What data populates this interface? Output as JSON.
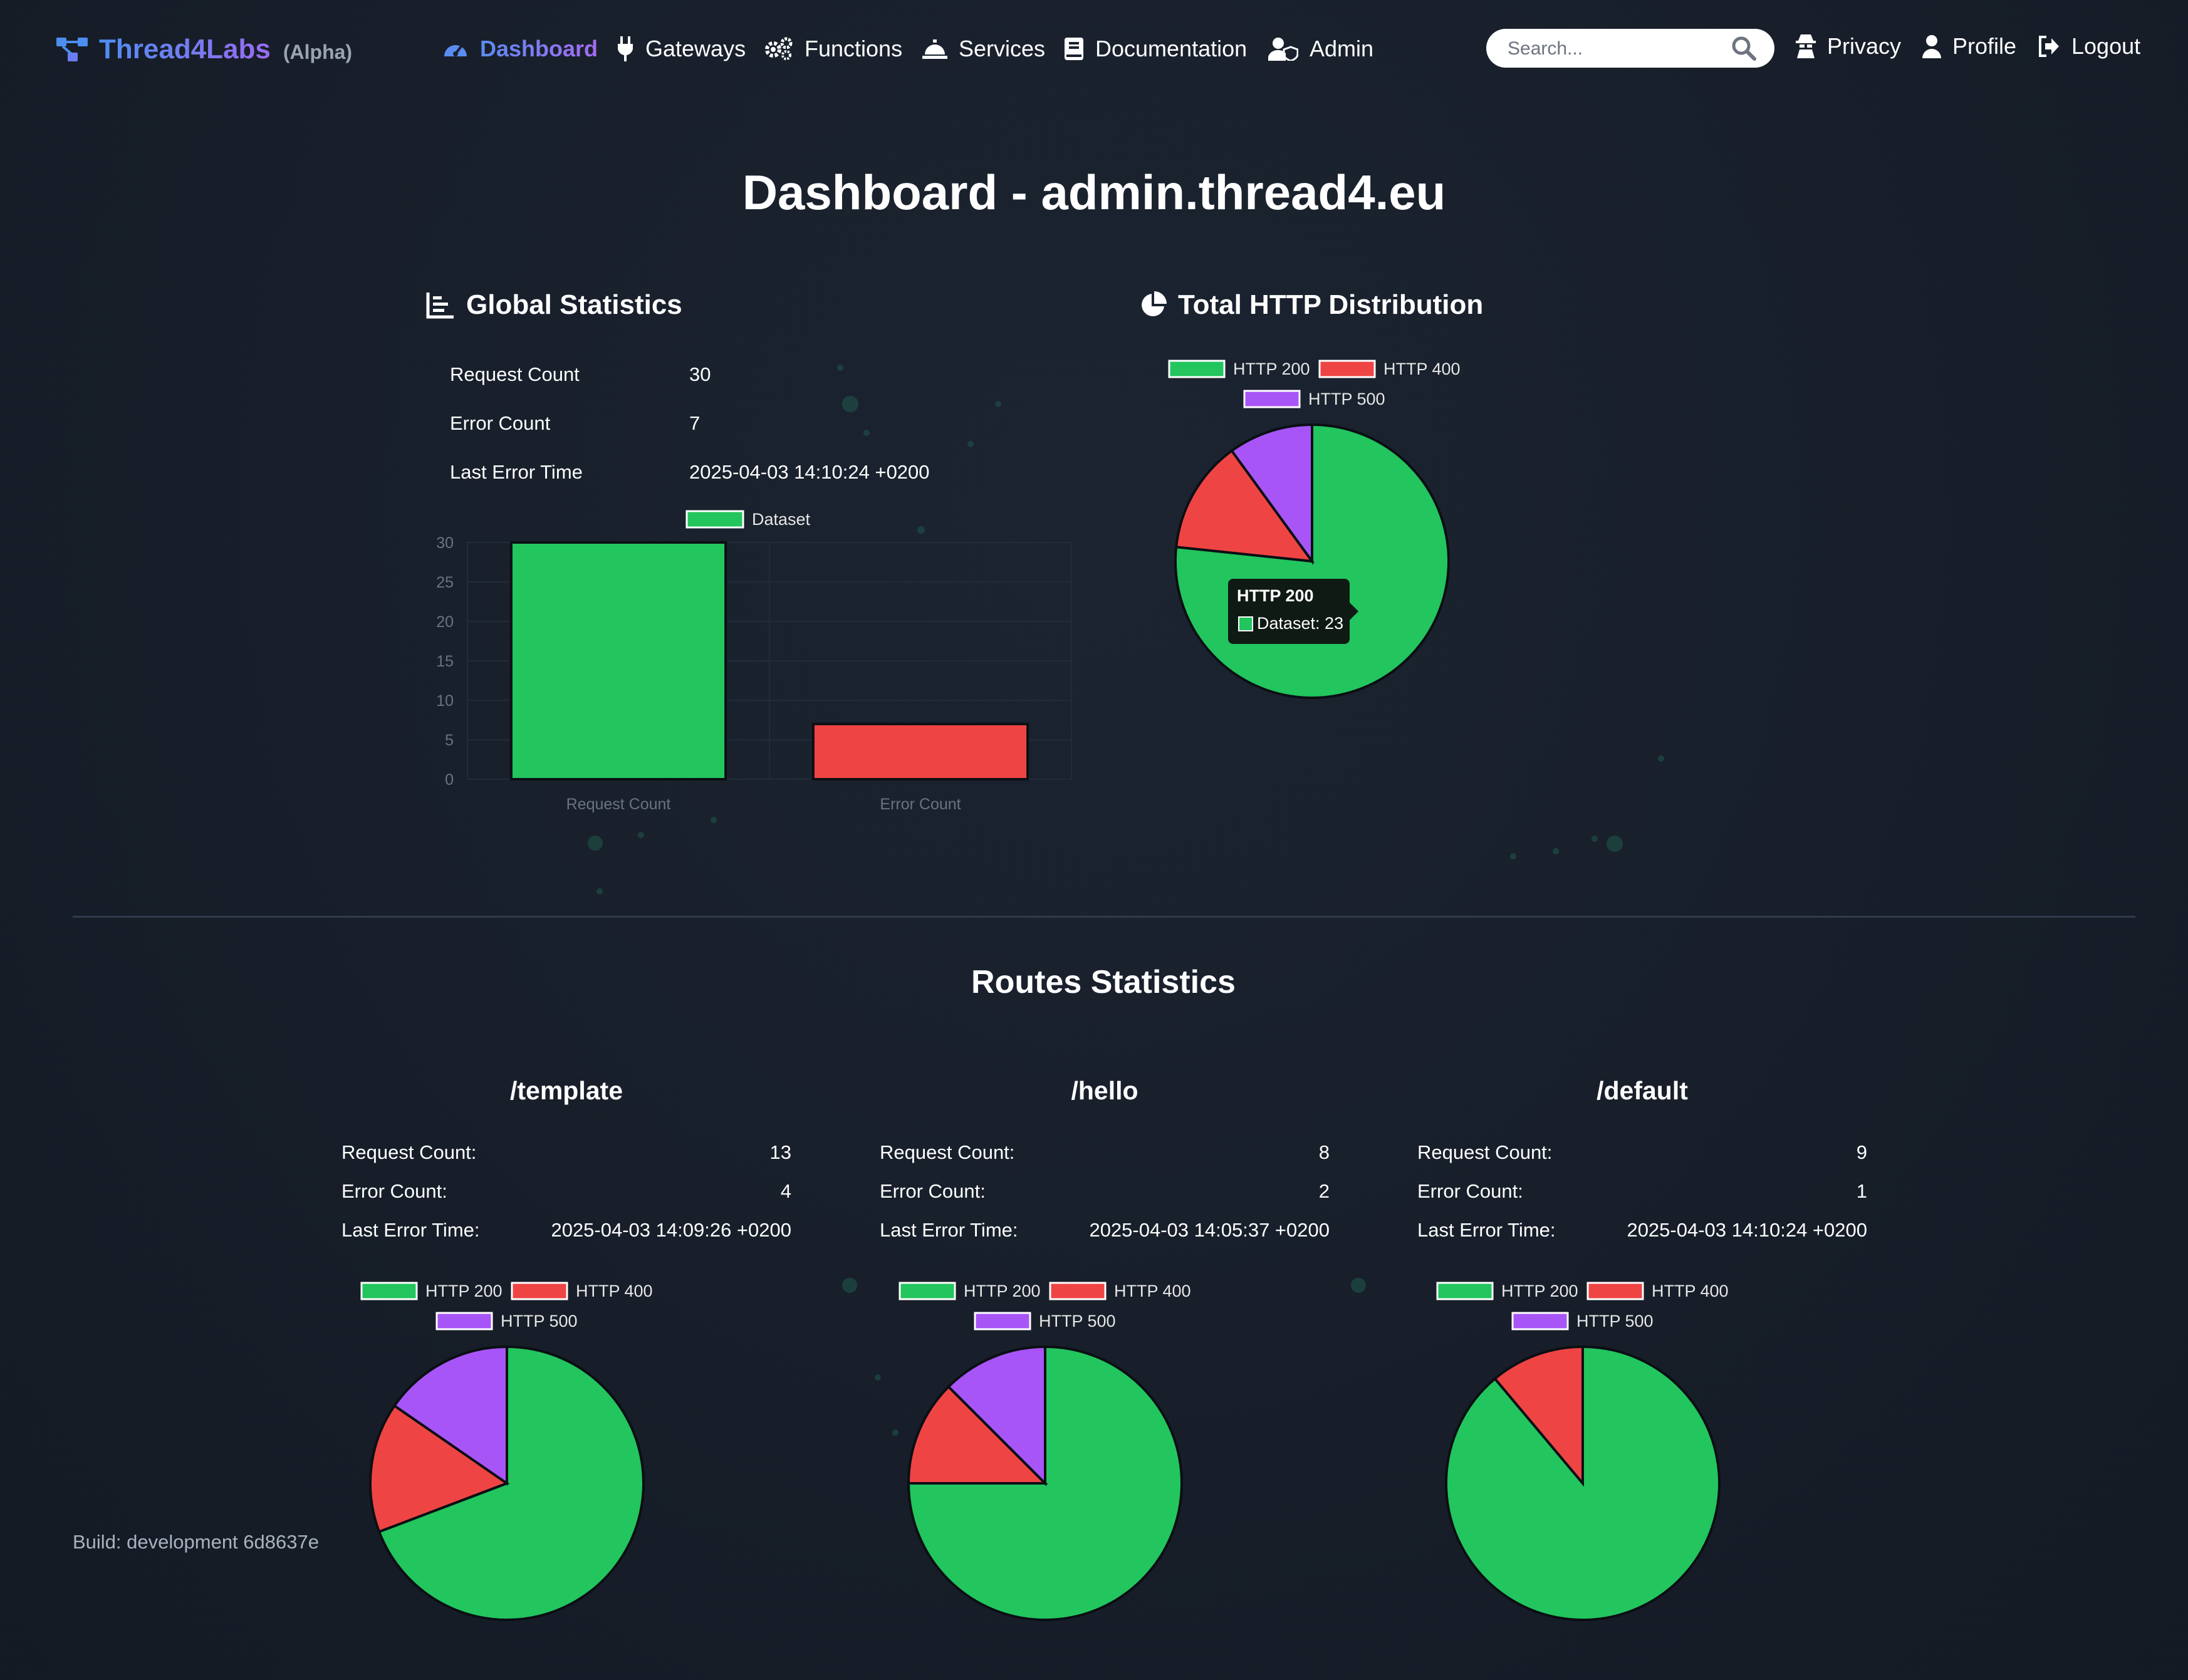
{
  "navbar": {
    "brand": "Thread4Labs",
    "brand_suffix": "(Alpha)",
    "items": [
      {
        "label": "Dashboard",
        "icon": "gauge-icon",
        "active": true
      },
      {
        "label": "Gateways",
        "icon": "plug-icon"
      },
      {
        "label": "Functions",
        "icon": "gears-icon"
      },
      {
        "label": "Services",
        "icon": "bell-concierge-icon"
      },
      {
        "label": "Documentation",
        "icon": "book-icon"
      },
      {
        "label": "Admin",
        "icon": "user-shield-icon"
      }
    ],
    "search_placeholder": "Search...",
    "right_items": [
      {
        "label": "Privacy",
        "icon": "user-secret-icon"
      },
      {
        "label": "Profile",
        "icon": "user-icon"
      },
      {
        "label": "Logout",
        "icon": "logout-icon"
      }
    ]
  },
  "page_title": "Dashboard - admin.thread4.eu",
  "global_stats": {
    "title": "Global Statistics",
    "rows": [
      {
        "label": "Request Count",
        "value": "30"
      },
      {
        "label": "Error Count",
        "value": "7"
      },
      {
        "label": "Last Error Time",
        "value": "2025-04-03 14:10:24 +0200"
      }
    ]
  },
  "http_distribution": {
    "title": "Total HTTP Distribution",
    "tooltip": {
      "title": "HTTP 200",
      "text": "Dataset: 23"
    }
  },
  "chart_data": [
    {
      "type": "bar",
      "legend": [
        "Dataset"
      ],
      "categories": [
        "Request Count",
        "Error Count"
      ],
      "values": [
        30,
        7
      ],
      "colors": [
        "#22c55e",
        "#ef4444"
      ],
      "ylim": [
        0,
        30
      ],
      "yticks": [
        0,
        5,
        10,
        15,
        20,
        25,
        30
      ],
      "legend_position": "top"
    },
    {
      "type": "pie",
      "labels": [
        "HTTP 200",
        "HTTP 400",
        "HTTP 500"
      ],
      "values": [
        23,
        4,
        3
      ],
      "colors": [
        "#22c55e",
        "#ef4444",
        "#a855f7"
      ],
      "legend_position": "top"
    },
    {
      "type": "pie",
      "route": "/template",
      "labels": [
        "HTTP 200",
        "HTTP 400",
        "HTTP 500"
      ],
      "values": [
        9,
        2,
        2
      ],
      "colors": [
        "#22c55e",
        "#ef4444",
        "#a855f7"
      ],
      "legend_position": "top"
    },
    {
      "type": "pie",
      "route": "/hello",
      "labels": [
        "HTTP 200",
        "HTTP 400",
        "HTTP 500"
      ],
      "values": [
        6,
        1,
        1
      ],
      "colors": [
        "#22c55e",
        "#ef4444",
        "#a855f7"
      ],
      "legend_position": "top"
    },
    {
      "type": "pie",
      "route": "/default",
      "labels": [
        "HTTP 200",
        "HTTP 400",
        "HTTP 500"
      ],
      "values": [
        8,
        1,
        0
      ],
      "colors": [
        "#22c55e",
        "#ef4444",
        "#a855f7"
      ],
      "legend_position": "top"
    }
  ],
  "routes_title": "Routes Statistics",
  "route_labels": {
    "request": "Request Count:",
    "error": "Error Count:",
    "last_error": "Last Error Time:"
  },
  "routes": [
    {
      "name": "/template",
      "request_count": "13",
      "error_count": "4",
      "last_error_time": "2025-04-03 14:09:26 +0200"
    },
    {
      "name": "/hello",
      "request_count": "8",
      "error_count": "2",
      "last_error_time": "2025-04-03 14:05:37 +0200"
    },
    {
      "name": "/default",
      "request_count": "9",
      "error_count": "1",
      "last_error_time": "2025-04-03 14:10:24 +0200"
    }
  ],
  "build": "Build: development 6d8637e"
}
